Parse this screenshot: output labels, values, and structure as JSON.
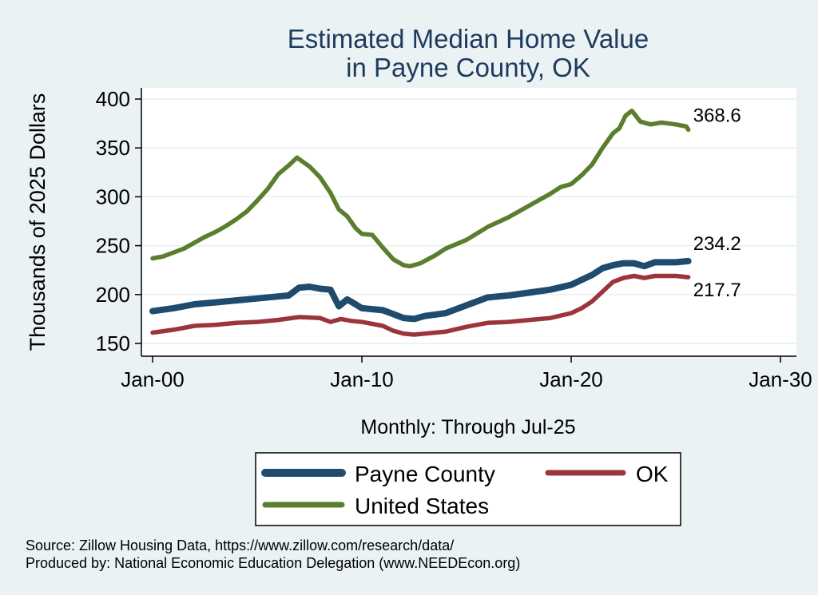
{
  "chart_data": {
    "type": "line",
    "title_lines": [
      "Estimated Median Home Value",
      "in Payne County, OK"
    ],
    "ylabel": "Thousands of 2025 Dollars",
    "xlabel": "Monthly: Through Jul-25",
    "ylim": [
      140,
      410
    ],
    "yticks": [
      150,
      200,
      250,
      300,
      350,
      400
    ],
    "xlim": [
      0,
      30
    ],
    "xticks": [
      {
        "value": 0,
        "label": "Jan-00"
      },
      {
        "value": 10,
        "label": "Jan-10"
      },
      {
        "value": 20,
        "label": "Jan-20"
      },
      {
        "value": 30,
        "label": "Jan-30"
      }
    ],
    "grid": true,
    "series": [
      {
        "name": "United States",
        "color": "#5a7d2e",
        "end_label": "368.6",
        "points": [
          [
            0,
            237
          ],
          [
            0.5,
            239
          ],
          [
            1,
            243
          ],
          [
            1.5,
            247
          ],
          [
            2,
            253
          ],
          [
            2.5,
            259
          ],
          [
            3,
            264
          ],
          [
            3.5,
            270
          ],
          [
            4,
            277
          ],
          [
            4.5,
            285
          ],
          [
            5,
            296
          ],
          [
            5.5,
            308
          ],
          [
            6,
            323
          ],
          [
            6.5,
            332
          ],
          [
            6.9,
            340
          ],
          [
            7.5,
            331
          ],
          [
            8,
            320
          ],
          [
            8.5,
            304
          ],
          [
            8.9,
            287
          ],
          [
            9.3,
            280
          ],
          [
            9.7,
            268
          ],
          [
            10,
            262
          ],
          [
            10.5,
            261
          ],
          [
            11,
            248
          ],
          [
            11.5,
            236
          ],
          [
            12,
            230
          ],
          [
            12.3,
            229
          ],
          [
            12.8,
            232
          ],
          [
            13.5,
            240
          ],
          [
            14,
            247
          ],
          [
            15,
            256
          ],
          [
            16,
            269
          ],
          [
            17,
            279
          ],
          [
            18,
            291
          ],
          [
            19,
            303
          ],
          [
            19.5,
            310
          ],
          [
            20,
            313
          ],
          [
            20.5,
            322
          ],
          [
            21,
            333
          ],
          [
            21.5,
            350
          ],
          [
            22,
            365
          ],
          [
            22.3,
            370
          ],
          [
            22.6,
            383
          ],
          [
            22.9,
            388
          ],
          [
            23.3,
            377
          ],
          [
            23.8,
            374
          ],
          [
            24.3,
            376
          ],
          [
            25,
            374
          ],
          [
            25.5,
            372
          ],
          [
            25.6,
            368.6
          ]
        ]
      },
      {
        "name": "Payne County",
        "color": "#1e4b6e",
        "end_label": "234.2",
        "points": [
          [
            0,
            183
          ],
          [
            1,
            186
          ],
          [
            2,
            190
          ],
          [
            3,
            192
          ],
          [
            4,
            194
          ],
          [
            5,
            196
          ],
          [
            6,
            198
          ],
          [
            6.5,
            199
          ],
          [
            7,
            207
          ],
          [
            7.5,
            208
          ],
          [
            8,
            206
          ],
          [
            8.5,
            205
          ],
          [
            8.9,
            188
          ],
          [
            9.3,
            195
          ],
          [
            9.7,
            190
          ],
          [
            10,
            186
          ],
          [
            11,
            184
          ],
          [
            11.5,
            180
          ],
          [
            12,
            176
          ],
          [
            12.5,
            175
          ],
          [
            13,
            178
          ],
          [
            14,
            181
          ],
          [
            15,
            189
          ],
          [
            16,
            197
          ],
          [
            17,
            199
          ],
          [
            18,
            202
          ],
          [
            19,
            205
          ],
          [
            20,
            210
          ],
          [
            20.5,
            215
          ],
          [
            21,
            220
          ],
          [
            21.5,
            227
          ],
          [
            22,
            230
          ],
          [
            22.5,
            232
          ],
          [
            23,
            232
          ],
          [
            23.5,
            229
          ],
          [
            24,
            233
          ],
          [
            25,
            233
          ],
          [
            25.6,
            234.2
          ]
        ]
      },
      {
        "name": "OK",
        "color": "#9c343c",
        "end_label": "217.7",
        "points": [
          [
            0,
            161
          ],
          [
            1,
            164
          ],
          [
            2,
            168
          ],
          [
            3,
            169
          ],
          [
            4,
            171
          ],
          [
            5,
            172
          ],
          [
            6,
            174
          ],
          [
            7,
            177
          ],
          [
            8,
            176
          ],
          [
            8.5,
            172
          ],
          [
            9,
            175
          ],
          [
            9.5,
            173
          ],
          [
            10,
            172
          ],
          [
            11,
            168
          ],
          [
            11.5,
            163
          ],
          [
            12,
            160
          ],
          [
            12.5,
            159
          ],
          [
            13,
            160
          ],
          [
            14,
            162
          ],
          [
            15,
            167
          ],
          [
            16,
            171
          ],
          [
            17,
            172
          ],
          [
            18,
            174
          ],
          [
            19,
            176
          ],
          [
            20,
            181
          ],
          [
            20.5,
            186
          ],
          [
            21,
            193
          ],
          [
            21.5,
            203
          ],
          [
            22,
            213
          ],
          [
            22.5,
            217
          ],
          [
            23,
            219
          ],
          [
            23.5,
            217
          ],
          [
            24,
            219
          ],
          [
            25,
            219
          ],
          [
            25.6,
            217.7
          ]
        ]
      }
    ],
    "legend": {
      "placement": "bottom",
      "entries": [
        {
          "label": "Payne County",
          "color": "#1e4b6e"
        },
        {
          "label": "OK",
          "color": "#9c343c"
        },
        {
          "label": "United States",
          "color": "#5a7d2e"
        }
      ]
    },
    "notes": [
      "Source: Zillow Housing Data, https://www.zillow.com/research/data/",
      "Produced by: National Economic Education Delegation (www.NEEDEcon.org)"
    ]
  }
}
